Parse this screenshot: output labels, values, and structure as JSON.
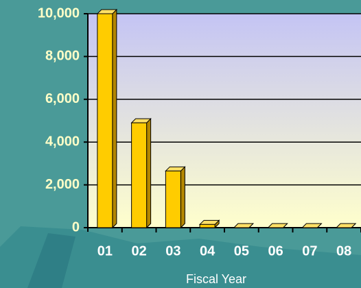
{
  "chart_data": {
    "type": "bar",
    "x_label": "Fiscal Year",
    "categories": [
      "01",
      "02",
      "03",
      "04",
      "05",
      "06",
      "07",
      "08"
    ],
    "values": [
      10000,
      4900,
      2650,
      150,
      0,
      0,
      0,
      0
    ],
    "color": "#ffcc00",
    "ylim": [
      0,
      10000
    ],
    "yticks": [
      0,
      {
        "value": 2000,
        "label": "2,000"
      },
      {
        "value": 4000,
        "label": "4,000"
      },
      {
        "value": 6000,
        "label": "6,000"
      },
      {
        "value": 8000,
        "label": "8,000"
      },
      {
        "value": 10000,
        "label": "10,000"
      }
    ],
    "grid": true
  }
}
